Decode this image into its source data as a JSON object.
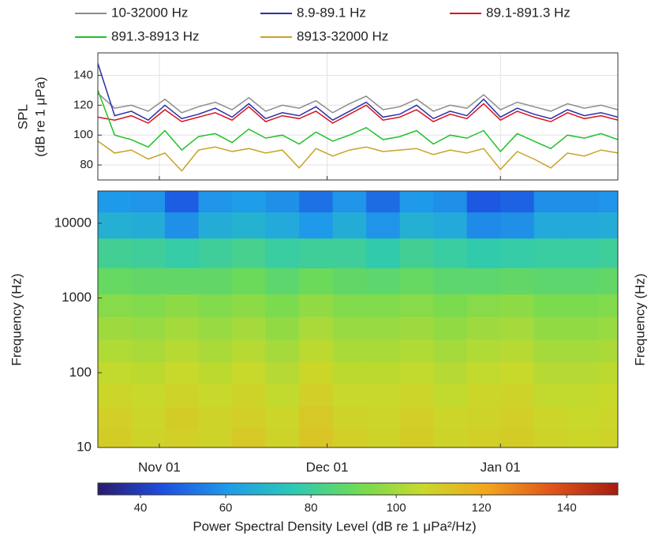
{
  "chart_data": [
    {
      "type": "line",
      "ylabel": [
        "SPL",
        "(dB re 1 μPa)"
      ],
      "legend": "top",
      "grid": true,
      "x": [
        0,
        3,
        6,
        9,
        12,
        15,
        18,
        21,
        24,
        27,
        30,
        33,
        36,
        39,
        42,
        45,
        48,
        51,
        54,
        57,
        60,
        63,
        66,
        69,
        72,
        75,
        78,
        81,
        84,
        87,
        90,
        93
      ],
      "xlim": [
        0,
        93
      ],
      "xticks": [
        11,
        41,
        72
      ],
      "ylim": [
        70,
        155
      ],
      "yticks": [
        80,
        100,
        120,
        140
      ],
      "series": [
        {
          "name": "10-32000 Hz",
          "color": "#8c8c8c",
          "values": [
            128,
            118,
            120,
            116,
            124,
            115,
            119,
            122,
            117,
            125,
            116,
            120,
            118,
            123,
            115,
            121,
            126,
            117,
            119,
            124,
            116,
            120,
            118,
            127,
            117,
            122,
            119,
            116,
            121,
            118,
            120,
            117
          ]
        },
        {
          "name": "8.9-89.1 Hz",
          "color": "#2b2fa8",
          "values": [
            148,
            113,
            116,
            110,
            120,
            111,
            114,
            118,
            112,
            121,
            111,
            115,
            113,
            119,
            110,
            116,
            122,
            112,
            114,
            120,
            111,
            116,
            113,
            124,
            112,
            118,
            114,
            111,
            117,
            113,
            115,
            112
          ]
        },
        {
          "name": "89.1-891.3 Hz",
          "color": "#d8141e",
          "values": [
            112,
            110,
            113,
            108,
            117,
            109,
            112,
            115,
            110,
            119,
            109,
            113,
            111,
            116,
            108,
            114,
            120,
            110,
            112,
            117,
            109,
            114,
            111,
            121,
            110,
            116,
            112,
            109,
            115,
            111,
            113,
            110
          ]
        },
        {
          "name": "891.3-8913 Hz",
          "color": "#22c02a",
          "values": [
            130,
            100,
            97,
            92,
            103,
            90,
            99,
            101,
            95,
            104,
            98,
            100,
            94,
            102,
            96,
            100,
            105,
            97,
            99,
            103,
            94,
            100,
            98,
            103,
            89,
            101,
            96,
            91,
            100,
            98,
            101,
            97
          ]
        },
        {
          "name": "8913-32000 Hz",
          "color": "#c9a227",
          "values": [
            96,
            88,
            90,
            84,
            88,
            76,
            90,
            92,
            89,
            91,
            88,
            90,
            78,
            91,
            86,
            90,
            92,
            89,
            90,
            91,
            87,
            90,
            88,
            91,
            77,
            89,
            84,
            78,
            88,
            86,
            90,
            88
          ]
        }
      ]
    },
    {
      "type": "heatmap",
      "ylabel": "Frequency (Hz)",
      "y2label": "Frequency (Hz)",
      "log_y": true,
      "x": [
        3,
        9,
        15,
        21,
        27,
        33,
        39,
        45,
        51,
        57,
        63,
        69,
        75,
        81,
        87,
        92
      ],
      "xlim": [
        0,
        93
      ],
      "xticks": [
        {
          "value": 11,
          "label": "Nov 01"
        },
        {
          "value": 41,
          "label": "Dec 01"
        },
        {
          "value": 72,
          "label": "Jan 01"
        }
      ],
      "y": [
        13,
        25,
        50,
        100,
        200,
        400,
        800,
        1600,
        4000,
        10000,
        20000
      ],
      "ylim": [
        10,
        27000
      ],
      "yticks": [
        10,
        100,
        1000,
        10000
      ],
      "z": [
        [
          110,
          108,
          109,
          108,
          111,
          108,
          112,
          109,
          108,
          110,
          108,
          109,
          110,
          108,
          107,
          108
        ],
        [
          109,
          107,
          110,
          108,
          109,
          107,
          111,
          108,
          107,
          109,
          107,
          108,
          109,
          107,
          106,
          107
        ],
        [
          107,
          106,
          108,
          106,
          108,
          105,
          109,
          106,
          106,
          107,
          105,
          107,
          108,
          105,
          105,
          106
        ],
        [
          105,
          104,
          106,
          104,
          106,
          103,
          107,
          104,
          104,
          105,
          103,
          105,
          106,
          103,
          103,
          104
        ],
        [
          102,
          101,
          103,
          101,
          103,
          100,
          104,
          101,
          101,
          102,
          100,
          102,
          103,
          100,
          100,
          101
        ],
        [
          99,
          98,
          100,
          98,
          100,
          97,
          101,
          98,
          98,
          99,
          97,
          99,
          100,
          97,
          97,
          98
        ],
        [
          95,
          94,
          96,
          94,
          96,
          93,
          97,
          94,
          94,
          95,
          93,
          95,
          96,
          93,
          93,
          94
        ],
        [
          89,
          88,
          88,
          88,
          90,
          87,
          90,
          88,
          87,
          89,
          87,
          87,
          88,
          87,
          87,
          88
        ],
        [
          81,
          80,
          78,
          80,
          82,
          79,
          80,
          80,
          77,
          81,
          79,
          77,
          78,
          79,
          79,
          80
        ],
        [
          67,
          66,
          58,
          66,
          68,
          65,
          60,
          66,
          59,
          67,
          65,
          57,
          58,
          65,
          65,
          66
        ],
        [
          60,
          59,
          48,
          59,
          61,
          58,
          52,
          59,
          51,
          60,
          58,
          47,
          49,
          58,
          58,
          59
        ]
      ],
      "colormap": [
        "#2a1a6e",
        "#1d4fe0",
        "#1f9bea",
        "#2cc9b5",
        "#6fdb55",
        "#c9d92a",
        "#f3a41d",
        "#e0531a",
        "#a51d10"
      ],
      "clim": [
        30,
        152
      ],
      "cticks": [
        40,
        60,
        80,
        100,
        120,
        140
      ],
      "colorbar_label": "Power Spectral Density Level (dB re 1 μPa²/Hz)"
    }
  ]
}
